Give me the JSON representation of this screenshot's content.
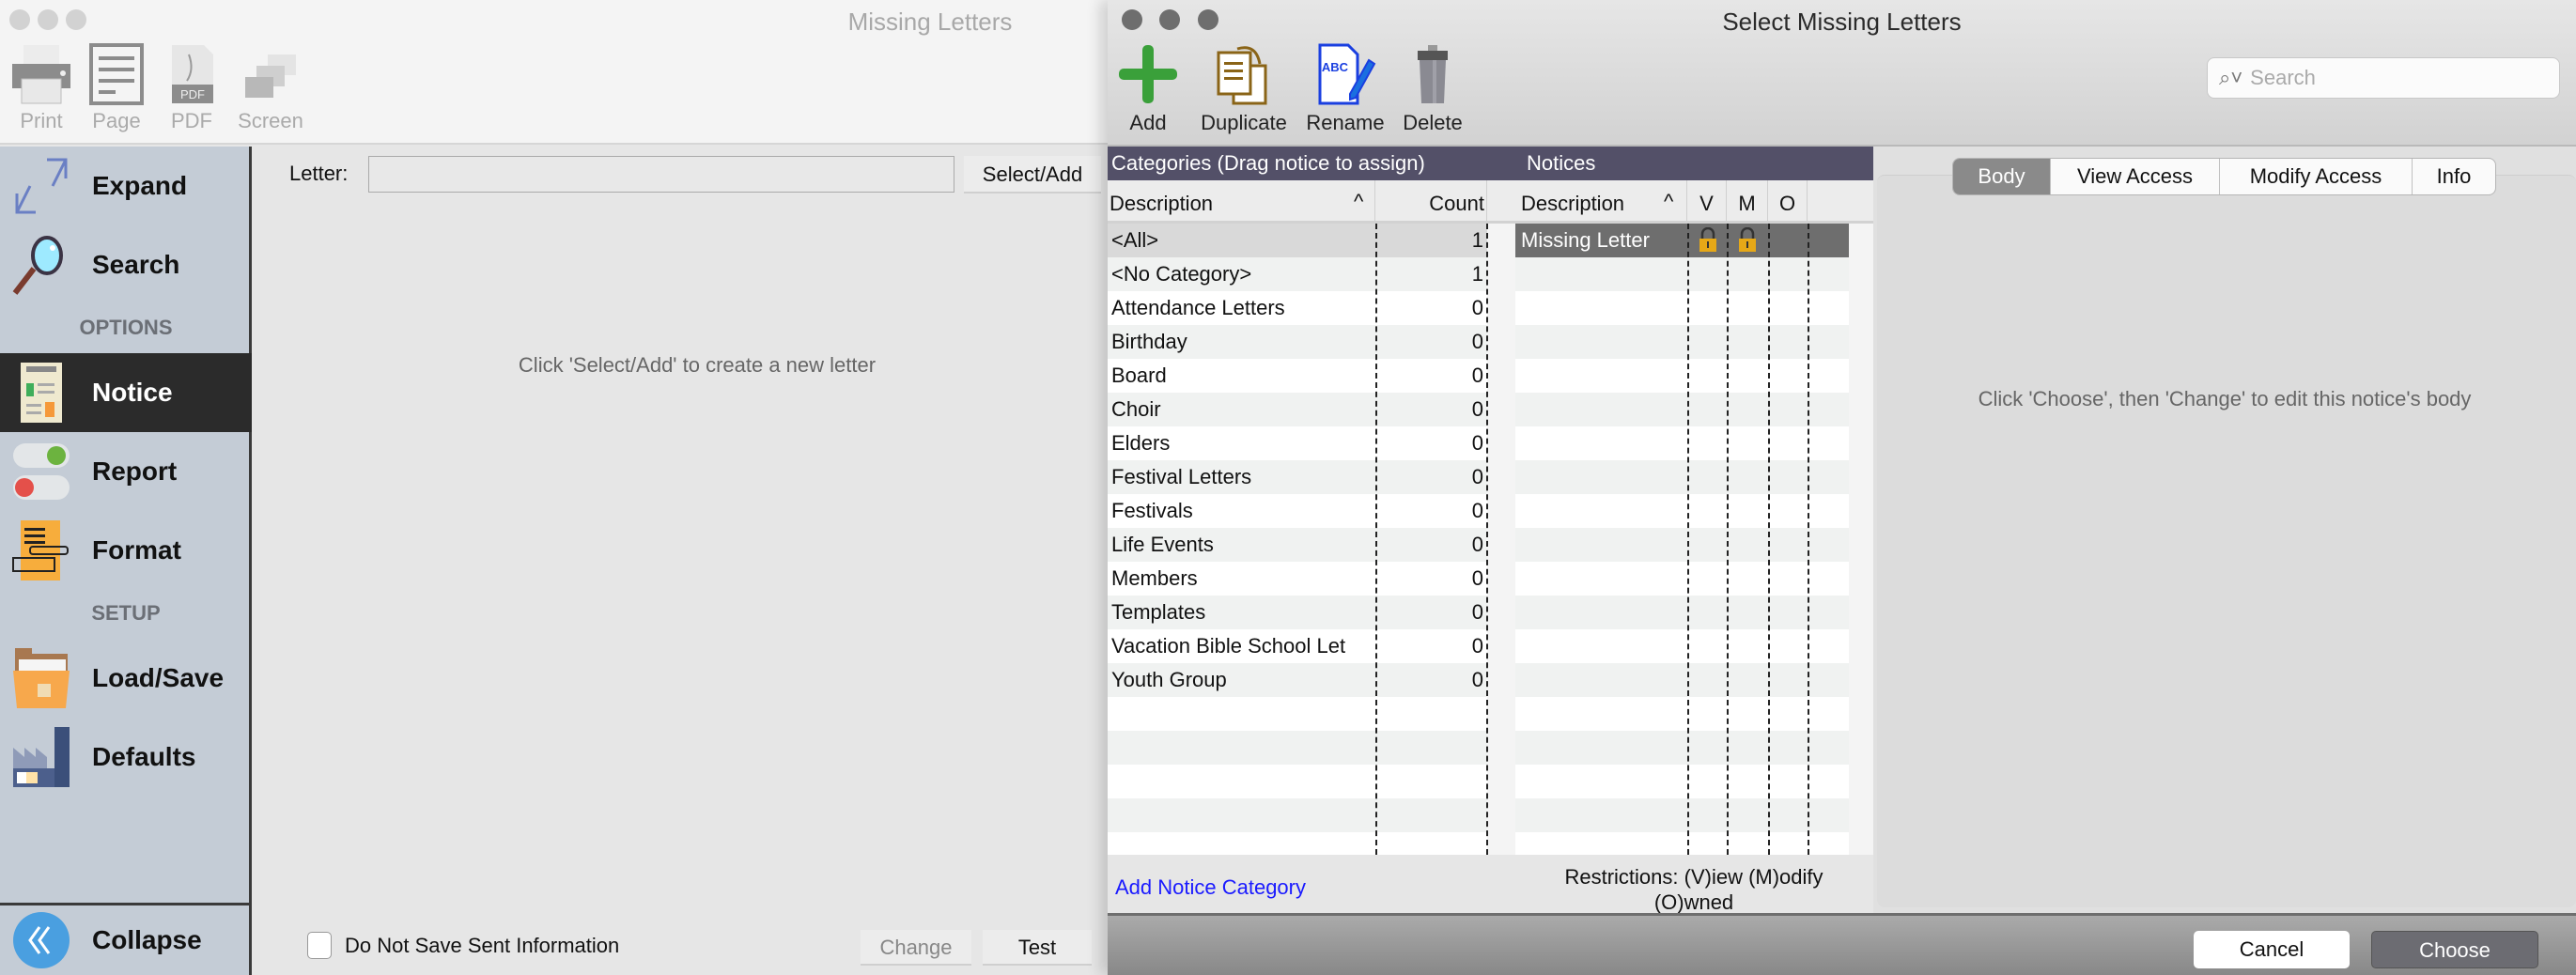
{
  "left_window": {
    "title": "Missing Letters",
    "toolbar": [
      {
        "label": "Print",
        "icon": "printer-icon"
      },
      {
        "label": "Page",
        "icon": "page-icon"
      },
      {
        "label": "PDF",
        "icon": "pdf-icon",
        "badge": "PDF"
      },
      {
        "label": "Screen",
        "icon": "screen-icon"
      }
    ],
    "sidebar": {
      "expand": "Expand",
      "search": "Search",
      "options_header": "OPTIONS",
      "notice": "Notice",
      "report": "Report",
      "format": "Format",
      "setup_header": "SETUP",
      "load_save": "Load/Save",
      "defaults": "Defaults",
      "collapse": "Collapse",
      "selected": "Notice"
    },
    "main": {
      "letter_label": "Letter:",
      "letter_value": "",
      "select_add": "Select/Add",
      "hint": "Click 'Select/Add' to create a new letter",
      "do_not_save": "Do Not Save Sent Information",
      "do_not_save_checked": false,
      "change": "Change",
      "test": "Test"
    }
  },
  "right_window": {
    "title": "Select Missing Letters",
    "toolbar": {
      "add": "Add",
      "duplicate": "Duplicate",
      "rename": "Rename",
      "delete": "Delete"
    },
    "search_placeholder": "Search",
    "categories_header": "Categories (Drag notice to assign)",
    "notices_header": "Notices",
    "category_columns": {
      "description": "Description",
      "count": "Count",
      "sort": "^"
    },
    "notice_columns": {
      "description": "Description",
      "sort": "^",
      "v": "V",
      "m": "M",
      "o": "O"
    },
    "categories": [
      {
        "name": "<All>",
        "count": "1",
        "selected": true
      },
      {
        "name": "<No Category>",
        "count": "1"
      },
      {
        "name": "Attendance Letters",
        "count": "0"
      },
      {
        "name": "Birthday",
        "count": "0"
      },
      {
        "name": "Board",
        "count": "0"
      },
      {
        "name": "Choir",
        "count": "0"
      },
      {
        "name": "Elders",
        "count": "0"
      },
      {
        "name": "Festival Letters",
        "count": "0"
      },
      {
        "name": "Festivals",
        "count": "0"
      },
      {
        "name": "Life Events",
        "count": "0"
      },
      {
        "name": "Members",
        "count": "0"
      },
      {
        "name": "Templates",
        "count": "0"
      },
      {
        "name": "Vacation Bible School Let",
        "count": "0"
      },
      {
        "name": "Youth Group",
        "count": "0"
      }
    ],
    "notices": [
      {
        "name": "Missing Letter",
        "view_locked": true,
        "modify_locked": true,
        "owned": false,
        "selected": true
      }
    ],
    "add_category": "Add Notice Category",
    "restrictions_line1": "Restrictions: (V)iew (M)odify",
    "restrictions_line2": "(O)wned",
    "tabs": [
      {
        "label": "Body",
        "active": true
      },
      {
        "label": "View Access"
      },
      {
        "label": "Modify Access"
      },
      {
        "label": "Info"
      }
    ],
    "body_hint": "Click 'Choose', then 'Change' to edit this notice's body",
    "cancel": "Cancel",
    "choose": "Choose",
    "colors": {
      "header_bar": "#535068",
      "link": "#1a1aff",
      "selected_notice": "#6e6e6e"
    }
  }
}
